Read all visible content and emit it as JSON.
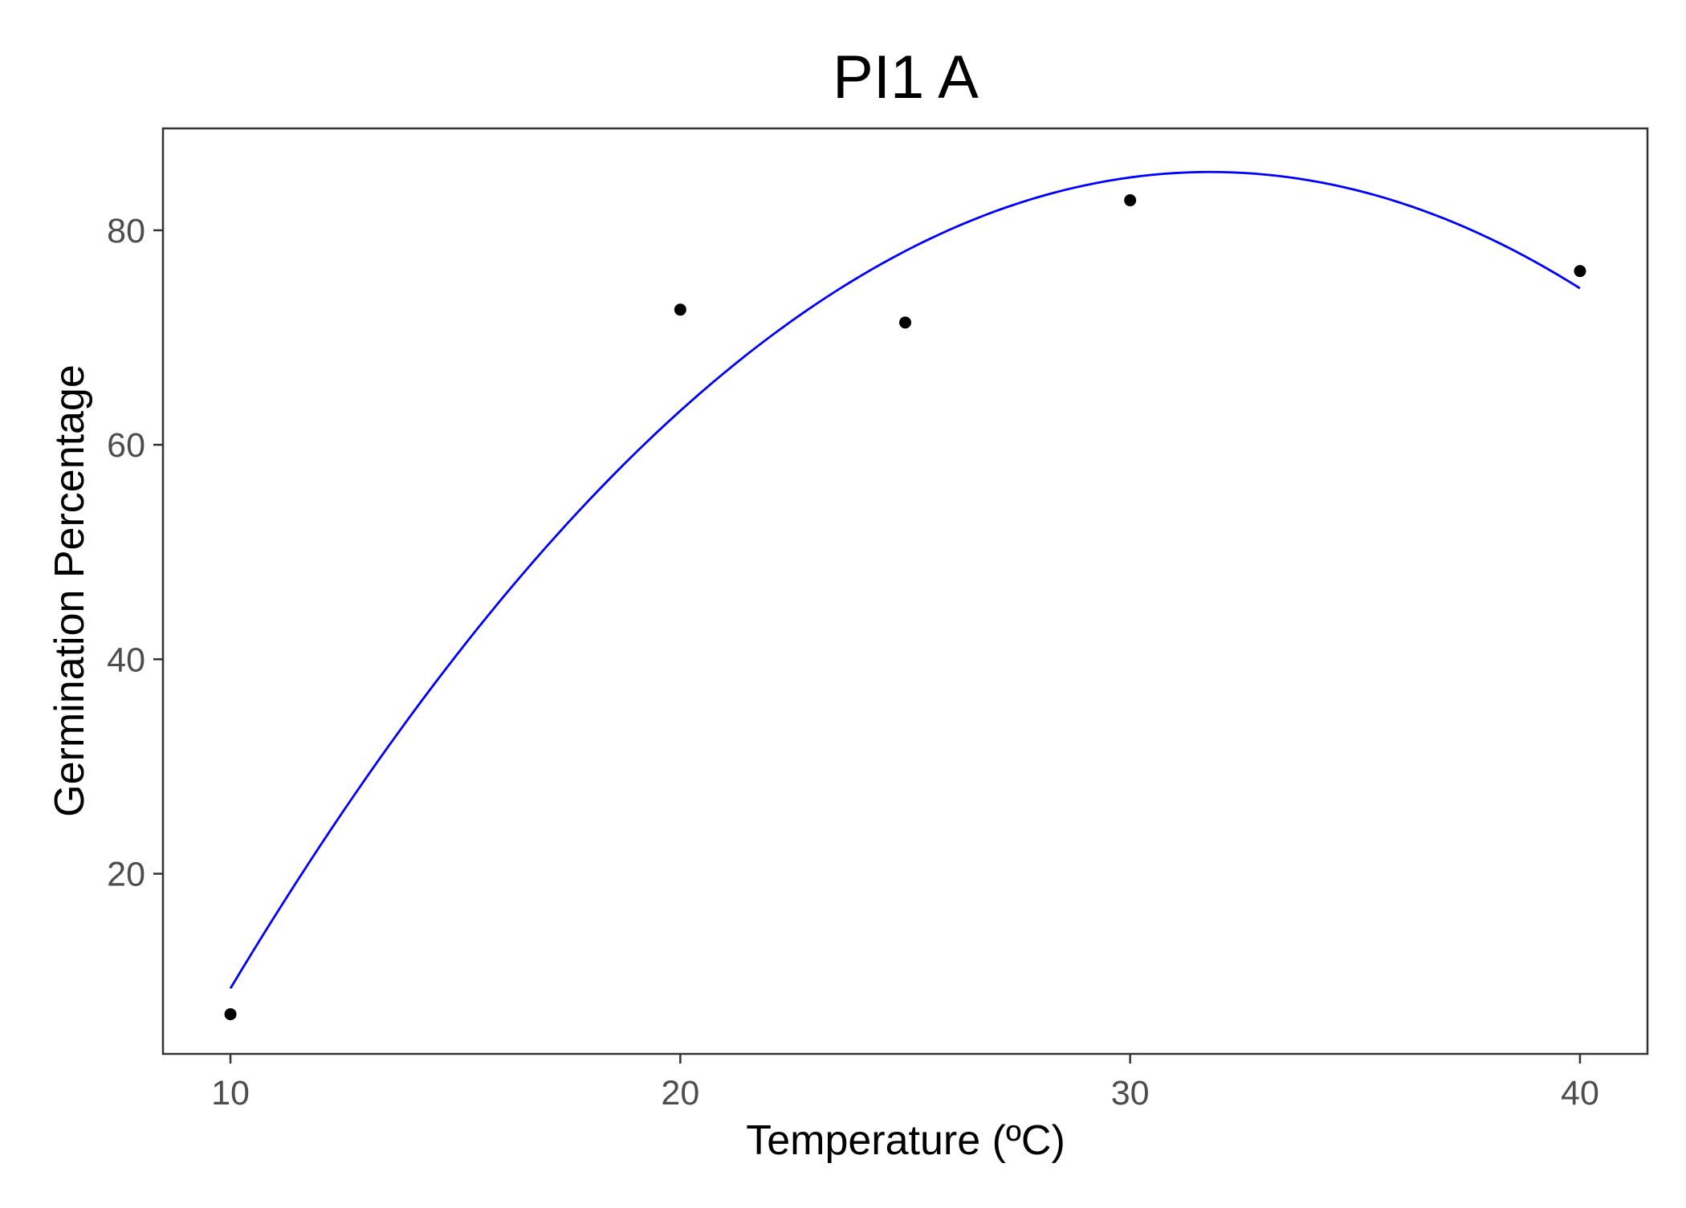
{
  "chart_data": {
    "type": "scatter",
    "title": "PI1 A",
    "xlabel": "Temperature (ºC)",
    "ylabel": "Germination Percentage",
    "xlim": [
      8.5,
      41.5
    ],
    "ylim": [
      3.2,
      89.5
    ],
    "x_ticks": [
      10,
      20,
      30,
      40
    ],
    "x_tick_labels": [
      "10",
      "20",
      "30",
      "40"
    ],
    "y_ticks": [
      20,
      40,
      60,
      80
    ],
    "y_tick_labels": [
      "20",
      "40",
      "60",
      "80"
    ],
    "grid": false,
    "legend": "none",
    "points": {
      "x": [
        10,
        20,
        25,
        30,
        40
      ],
      "y": [
        6.9,
        72.6,
        71.4,
        82.8,
        76.2
      ],
      "color": "#000000"
    },
    "fit_curve": {
      "kind": "quadratic",
      "x_range": [
        10,
        40
      ],
      "x": [
        10,
        20,
        30,
        40
      ],
      "y": [
        9.3,
        63.2,
        84.9,
        74.6
      ],
      "color": "#0000ff"
    }
  }
}
